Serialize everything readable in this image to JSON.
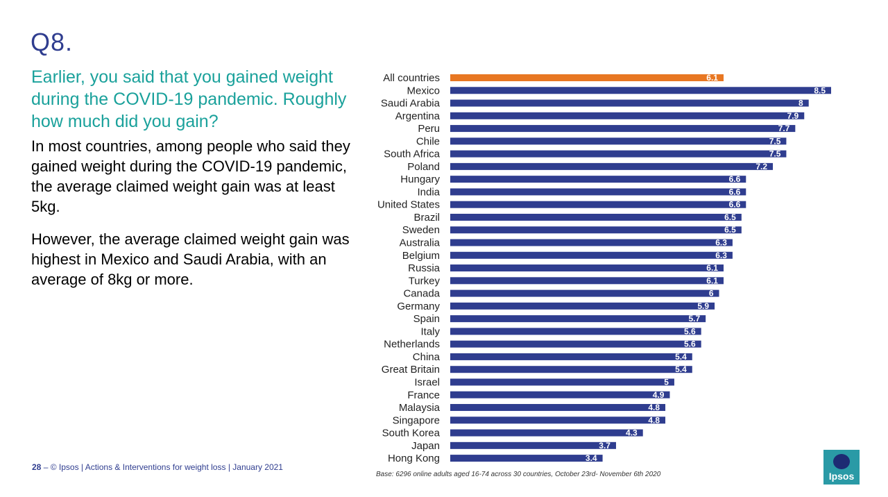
{
  "header": {
    "question_number": "Q8.",
    "question_text": "Earlier, you said that you gained weight during the COVID-19 pandemic. Roughly how much did you gain?"
  },
  "summary": {
    "para1": "In most countries, among people who said they gained weight during the COVID-19 pandemic, the average claimed weight gain was at least 5kg.",
    "para2": "However, the average claimed weight gain was highest in Mexico and Saudi Arabia, with an average of 8kg or more."
  },
  "chart_data": {
    "type": "bar",
    "orientation": "horizontal",
    "categories": [
      "All countries",
      "Mexico",
      "Saudi Arabia",
      "Argentina",
      "Peru",
      "Chile",
      "South Africa",
      "Poland",
      "Hungary",
      "India",
      "United States",
      "Brazil",
      "Sweden",
      "Australia",
      "Belgium",
      "Russia",
      "Turkey",
      "Canada",
      "Germany",
      "Spain",
      "Italy",
      "Netherlands",
      "China",
      "Great Britain",
      "Israel",
      "France",
      "Malaysia",
      "Singapore",
      "South Korea",
      "Japan",
      "Hong Kong"
    ],
    "values": [
      6.1,
      8.5,
      8,
      7.9,
      7.7,
      7.5,
      7.5,
      7.2,
      6.6,
      6.6,
      6.6,
      6.5,
      6.5,
      6.3,
      6.3,
      6.1,
      6.1,
      6,
      5.9,
      5.7,
      5.6,
      5.6,
      5.4,
      5.4,
      5,
      4.9,
      4.8,
      4.8,
      4.3,
      3.7,
      3.4
    ],
    "highlight_index": 0,
    "colors": {
      "bar": "#2f3d8f",
      "highlight": "#e87722"
    },
    "xlim": [
      0,
      8.5
    ],
    "data_labels": true,
    "grid": false,
    "legend": "none"
  },
  "base_note": "Base: 6296 online adults aged 16-74 across 30 countries, October 23rd- November 6th 2020",
  "footer": {
    "page_number": "28",
    "separator": "–",
    "text": "© Ipsos | Actions & Interventions for weight loss | January 2021"
  },
  "logo": {
    "text": "Ipsos",
    "icon": "ipsos-logo-icon"
  }
}
